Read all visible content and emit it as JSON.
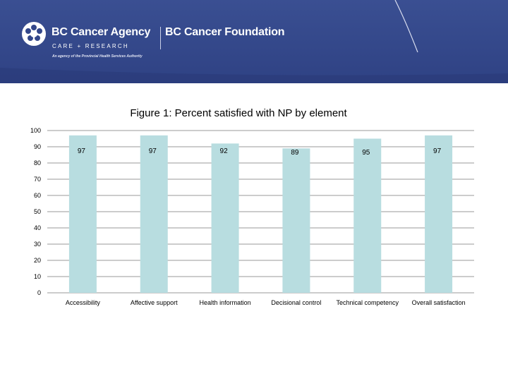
{
  "header": {
    "agency": "BC Cancer Agency",
    "foundation": "BC Cancer Foundation",
    "subline": "CARE + RESEARCH",
    "tagline": "An agency of the Provincial Health Services Authority",
    "banner_color": "#33478a"
  },
  "chart_data": {
    "type": "bar",
    "title": "Figure 1: Percent satisfied with NP by element",
    "categories": [
      "Accessibility",
      "Affective support",
      "Health information",
      "Decisional control",
      "Technical competency",
      "Overall satisfaction"
    ],
    "values": [
      97,
      97,
      92,
      89,
      95,
      97
    ],
    "data_labels": [
      "97",
      "97",
      "92",
      "89",
      "95",
      "97"
    ],
    "ylim": [
      0,
      100
    ],
    "yticks": [
      0,
      10,
      20,
      30,
      40,
      50,
      60,
      70,
      80,
      90,
      100
    ],
    "grid": true,
    "bar_color": "#b8dde0",
    "xlabel": "",
    "ylabel": ""
  }
}
